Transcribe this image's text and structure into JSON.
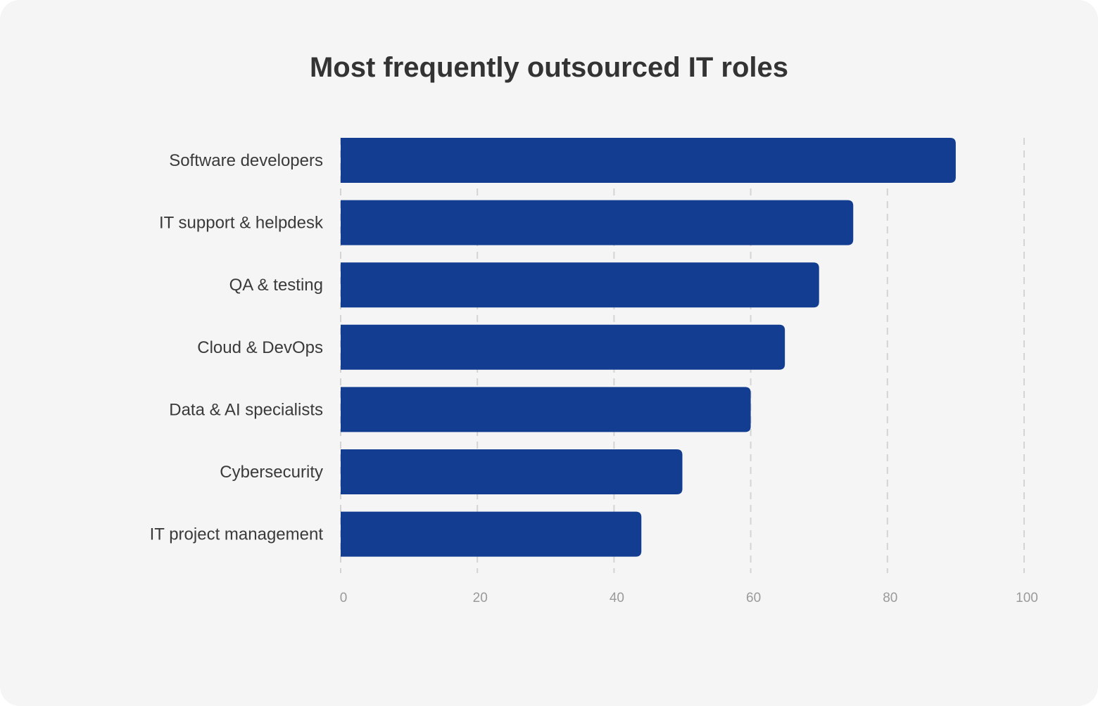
{
  "chart_data": {
    "type": "bar",
    "orientation": "horizontal",
    "title": "Most frequently outsourced IT roles",
    "categories": [
      "Software developers",
      "IT support & helpdesk",
      "QA & testing",
      "Cloud & DevOps",
      "Data & AI specialists",
      "Cybersecurity",
      "IT project management"
    ],
    "values": [
      90,
      75,
      70,
      65,
      60,
      50,
      44
    ],
    "xlim": [
      0,
      100
    ],
    "xticks": [
      "0",
      "20",
      "40",
      "60",
      "80",
      "100"
    ],
    "grid": true,
    "bar_color": "#123d91",
    "xlabel": "",
    "ylabel": ""
  }
}
